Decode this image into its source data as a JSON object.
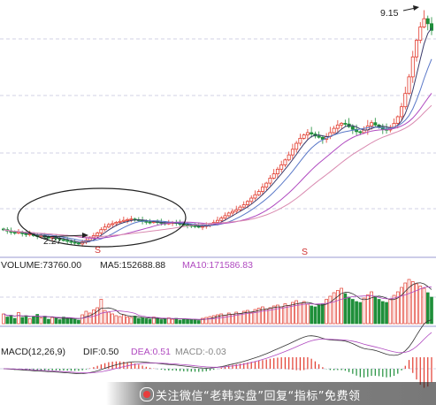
{
  "chart_data": {
    "type": "candlestick",
    "price_labels": {
      "low": "2.27",
      "high": "9.15"
    },
    "volume_header": {
      "volume": "VOLUME:73760.00",
      "ma5": "MA5:152688.88",
      "ma10": "MA10:171586.83"
    },
    "macd_header": {
      "macd": "MACD(12,26,9)",
      "dif": "DIF:0.50",
      "dea": "DEA:0.51",
      "macd_value": "MACD:-0.03"
    },
    "markers": [
      "S",
      "S"
    ],
    "close": [
      2.7,
      2.66,
      2.62,
      2.6,
      2.63,
      2.58,
      2.55,
      2.57,
      2.52,
      2.5,
      2.53,
      2.48,
      2.45,
      2.47,
      2.44,
      2.4,
      2.38,
      2.35,
      2.32,
      2.3,
      2.27,
      2.33,
      2.38,
      2.45,
      2.52,
      2.6,
      2.7,
      2.78,
      2.85,
      2.88,
      2.92,
      2.95,
      2.98,
      3.0,
      3.02,
      3.0,
      2.98,
      2.95,
      2.93,
      2.92,
      2.94,
      2.92,
      2.9,
      2.88,
      2.9,
      2.92,
      2.89,
      2.86,
      2.84,
      2.83,
      2.82,
      2.8,
      2.78,
      2.8,
      2.83,
      2.87,
      2.92,
      2.98,
      3.05,
      3.12,
      3.2,
      3.25,
      3.3,
      3.38,
      3.45,
      3.55,
      3.65,
      3.75,
      3.85,
      3.98,
      4.1,
      4.25,
      4.38,
      4.52,
      4.65,
      4.8,
      4.95,
      5.12,
      5.3,
      5.45,
      5.55,
      5.62,
      5.58,
      5.52,
      5.48,
      5.42,
      5.5,
      5.62,
      5.75,
      5.85,
      5.9,
      5.88,
      5.8,
      5.72,
      5.65,
      5.62,
      5.7,
      5.82,
      5.92,
      5.85,
      5.78,
      5.72,
      5.7,
      5.78,
      5.9,
      6.1,
      6.4,
      6.8,
      7.3,
      7.9,
      8.4,
      8.8,
      9.05,
      8.9,
      8.7
    ],
    "volume": [
      0.22,
      0.15,
      0.19,
      0.12,
      0.25,
      0.14,
      0.18,
      0.11,
      0.16,
      0.21,
      0.13,
      0.17,
      0.1,
      0.14,
      0.12,
      0.09,
      0.15,
      0.11,
      0.13,
      0.1,
      0.08,
      0.2,
      0.28,
      0.24,
      0.31,
      0.36,
      0.55,
      0.3,
      0.26,
      0.22,
      0.18,
      0.16,
      0.2,
      0.15,
      0.14,
      0.17,
      0.12,
      0.13,
      0.11,
      0.1,
      0.15,
      0.12,
      0.09,
      0.11,
      0.13,
      0.1,
      0.12,
      0.08,
      0.11,
      0.09,
      0.1,
      0.08,
      0.07,
      0.12,
      0.14,
      0.16,
      0.18,
      0.2,
      0.22,
      0.19,
      0.24,
      0.21,
      0.26,
      0.23,
      0.28,
      0.3,
      0.25,
      0.32,
      0.35,
      0.38,
      0.33,
      0.36,
      0.4,
      0.42,
      0.38,
      0.45,
      0.41,
      0.48,
      0.52,
      0.46,
      0.5,
      0.44,
      0.4,
      0.38,
      0.42,
      0.45,
      0.55,
      0.62,
      0.7,
      0.75,
      0.8,
      0.68,
      0.6,
      0.55,
      0.5,
      0.48,
      0.58,
      0.65,
      0.72,
      0.62,
      0.55,
      0.5,
      0.48,
      0.56,
      0.64,
      0.72,
      0.82,
      0.92,
      1.0,
      0.95,
      0.9,
      0.85,
      0.8,
      0.7,
      0.6
    ]
  },
  "watermark": {
    "text": "关注微信“老韩实盘”回复“指标”免费领"
  },
  "colors": {
    "up": "#e23b2e",
    "down": "#1f8f3a",
    "ma_dark": "#3b3b6b",
    "ma_blue": "#5a78c8",
    "ma_purple": "#b04ac0",
    "ma_pink": "#d98ab0",
    "grid": "#c8c8d8"
  }
}
